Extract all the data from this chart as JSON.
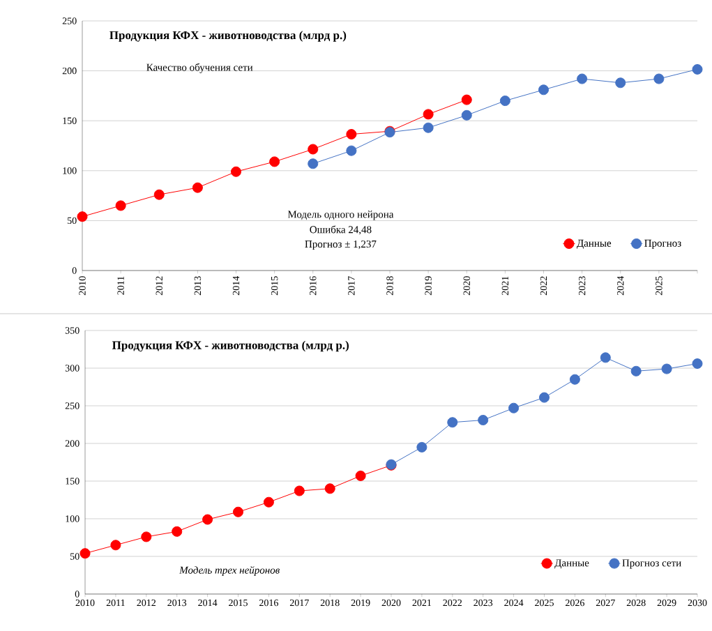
{
  "chart_data": [
    {
      "type": "line",
      "title": "Продукция КФХ - животноводства  (млрд р.)",
      "categories": [
        "2010",
        "2011",
        "2012",
        "2013",
        "2014",
        "2015",
        "2016",
        "2017",
        "2018",
        "2019",
        "2020",
        "2021",
        "2022",
        "2023",
        "2024",
        "2025",
        null
      ],
      "series": [
        {
          "name": "Данные",
          "color": "#ff0000",
          "values": [
            54,
            65,
            76,
            83,
            99,
            109,
            121.5,
            136.5,
            139.5,
            156.5,
            171,
            null,
            null,
            null,
            null,
            null,
            null
          ]
        },
        {
          "name": "Прогноз",
          "color": "#4472c4",
          "values": [
            null,
            null,
            null,
            null,
            null,
            null,
            107,
            120,
            138.5,
            143,
            155.5,
            170,
            181,
            192,
            188,
            192,
            201.5
          ]
        }
      ],
      "ylim": [
        0,
        250
      ],
      "yticks": [
        0,
        50,
        100,
        150,
        200,
        250
      ],
      "grid": "y",
      "legend": "bottom right",
      "marker": "circle",
      "line_style": "solid",
      "annotations": [
        "Качество обучения сети",
        "Модель одного нейрона",
        "Ошибка 24,48",
        "Прогноз ± 1,237"
      ]
    },
    {
      "type": "line",
      "title": "Продукция КФХ - животноводства  (млрд р.)",
      "categories": [
        "2010",
        "2011",
        "2012",
        "2013",
        "2014",
        "2015",
        "2016",
        "2017",
        "2018",
        "2019",
        "2020",
        "2021",
        "2022",
        "2023",
        "2024",
        "2025",
        "2026",
        "2027",
        "2028",
        "2029",
        "2030"
      ],
      "series": [
        {
          "name": "Данные",
          "color": "#ff0000",
          "values": [
            54,
            65,
            76,
            83,
            99,
            109,
            122,
            137,
            140,
            157,
            171,
            null,
            null,
            null,
            null,
            null,
            null,
            null,
            null,
            null,
            null
          ]
        },
        {
          "name": "Прогноз сети",
          "color": "#4472c4",
          "values": [
            null,
            null,
            null,
            null,
            null,
            null,
            null,
            null,
            null,
            null,
            172,
            195,
            228,
            231,
            247,
            261,
            285,
            314,
            296,
            299,
            306
          ]
        }
      ],
      "ylim": [
        0,
        350
      ],
      "yticks": [
        0,
        50,
        100,
        150,
        200,
        250,
        300,
        350
      ],
      "grid": "y",
      "legend": "bottom right",
      "marker": "circle",
      "line_style": "solid",
      "annotations": [
        "Модель трех нейронов"
      ]
    }
  ]
}
